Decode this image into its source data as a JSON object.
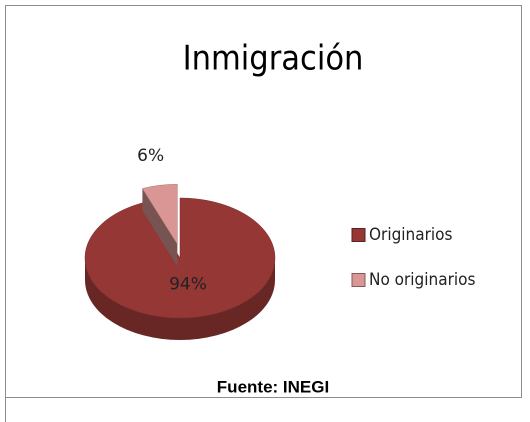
{
  "chart_data": {
    "type": "pie",
    "title": "Inmigración",
    "categories": [
      "Originarios",
      "No originarios"
    ],
    "values": [
      94,
      6
    ],
    "value_labels": [
      "94%",
      "6%"
    ],
    "colors": [
      "#953735",
      "#d99694"
    ],
    "legend": "right",
    "source": "Fuente: INEGI"
  }
}
